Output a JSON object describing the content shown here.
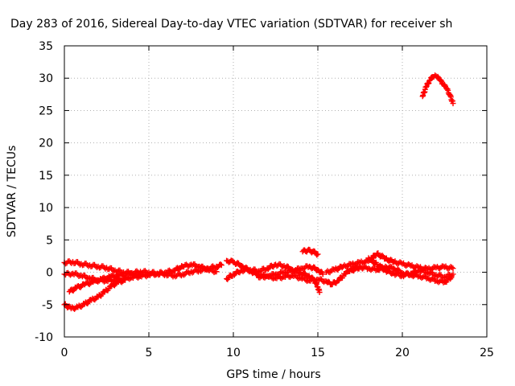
{
  "chart_data": {
    "type": "scatter",
    "title": "Day 283 of 2016, Sidereal Day-to-day VTEC variation (SDTVAR) for receiver sh",
    "xlabel": "GPS time / hours",
    "ylabel": "SDTVAR / TECUs",
    "xlim": [
      0,
      25
    ],
    "ylim": [
      -10,
      35
    ],
    "xticks": [
      "0",
      "5",
      "10",
      "15",
      "20",
      "25"
    ],
    "yticks": [
      "-10",
      "-5",
      "0",
      "5",
      "10",
      "15",
      "20",
      "25",
      "30",
      "35"
    ],
    "grid": true,
    "marker": "plus",
    "color": "#ff0000",
    "series": [
      {
        "values": [
          [
            0.0,
            1.5
          ],
          [
            0.5,
            1.6
          ],
          [
            1.0,
            1.3
          ],
          [
            1.5,
            1.1
          ],
          [
            2.0,
            0.9
          ],
          [
            2.5,
            0.7
          ],
          [
            3.0,
            0.3
          ],
          [
            3.5,
            0.0
          ],
          [
            4.0,
            -0.1
          ],
          [
            4.5,
            0.1
          ],
          [
            5.0,
            0.0
          ],
          [
            5.5,
            -0.2
          ],
          [
            6.0,
            -0.3
          ],
          [
            6.5,
            -0.5
          ],
          [
            7.0,
            -0.3
          ],
          [
            7.5,
            0.1
          ],
          [
            8.0,
            0.3
          ],
          [
            8.5,
            0.6
          ],
          [
            9.0,
            0.9
          ],
          [
            9.3,
            1.1
          ]
        ]
      },
      {
        "values": [
          [
            0.0,
            -0.3
          ],
          [
            0.5,
            -0.2
          ],
          [
            1.0,
            -0.5
          ],
          [
            1.5,
            -0.9
          ],
          [
            2.0,
            -1.2
          ],
          [
            2.5,
            -1.3
          ],
          [
            3.0,
            -1.2
          ],
          [
            3.5,
            -1.0
          ],
          [
            4.0,
            -0.8
          ],
          [
            4.5,
            -0.6
          ],
          [
            5.0,
            -0.4
          ],
          [
            5.5,
            -0.2
          ],
          [
            6.0,
            0.0
          ],
          [
            6.5,
            0.3
          ],
          [
            7.0,
            0.9
          ],
          [
            7.5,
            1.2
          ],
          [
            8.0,
            0.9
          ],
          [
            8.5,
            0.4
          ],
          [
            9.0,
            0.1
          ]
        ]
      },
      {
        "values": [
          [
            0.3,
            -3.0
          ],
          [
            0.7,
            -2.4
          ],
          [
            1.2,
            -1.9
          ],
          [
            1.7,
            -1.5
          ],
          [
            2.2,
            -1.1
          ],
          [
            2.7,
            -0.7
          ],
          [
            3.2,
            -0.5
          ],
          [
            3.8,
            -0.3
          ],
          [
            4.5,
            -0.3
          ]
        ]
      },
      {
        "values": [
          [
            0.0,
            -5.0
          ],
          [
            0.4,
            -5.6
          ],
          [
            0.8,
            -5.4
          ],
          [
            1.2,
            -4.9
          ],
          [
            1.6,
            -4.3
          ],
          [
            2.0,
            -3.8
          ],
          [
            2.4,
            -3.0
          ],
          [
            2.8,
            -2.1
          ],
          [
            3.2,
            -1.5
          ],
          [
            3.6,
            -1.2
          ]
        ]
      },
      {
        "values": [
          [
            9.6,
            1.8
          ],
          [
            10.0,
            1.6
          ],
          [
            10.5,
            1.0
          ],
          [
            11.0,
            0.2
          ],
          [
            11.5,
            -0.4
          ],
          [
            12.0,
            -0.6
          ],
          [
            12.5,
            -0.3
          ],
          [
            13.0,
            0.0
          ],
          [
            13.5,
            0.2
          ],
          [
            14.0,
            0.6
          ],
          [
            14.5,
            0.9
          ],
          [
            15.0,
            0.4
          ],
          [
            15.3,
            -0.3
          ]
        ]
      },
      {
        "values": [
          [
            9.6,
            -1.0
          ],
          [
            10.0,
            -0.3
          ],
          [
            10.5,
            0.3
          ],
          [
            11.0,
            0.4
          ],
          [
            11.5,
            0.2
          ],
          [
            12.0,
            0.6
          ],
          [
            12.5,
            1.2
          ],
          [
            13.0,
            1.0
          ],
          [
            13.5,
            0.4
          ],
          [
            14.0,
            -0.1
          ],
          [
            14.5,
            -0.6
          ],
          [
            14.8,
            -1.3
          ],
          [
            15.0,
            -2.3
          ],
          [
            15.1,
            -3.1
          ]
        ]
      },
      {
        "values": [
          [
            11.5,
            -0.8
          ],
          [
            12.0,
            -0.6
          ],
          [
            12.5,
            -0.9
          ],
          [
            13.0,
            -0.7
          ],
          [
            13.5,
            -0.5
          ],
          [
            14.0,
            -0.9
          ],
          [
            14.5,
            -1.3
          ],
          [
            15.0,
            -1.1
          ],
          [
            15.5,
            -1.4
          ],
          [
            15.8,
            -1.9
          ],
          [
            16.2,
            -1.3
          ],
          [
            16.6,
            -0.3
          ],
          [
            17.0,
            0.6
          ],
          [
            17.5,
            0.9
          ]
        ]
      },
      {
        "values": [
          [
            14.1,
            3.2
          ],
          [
            14.4,
            3.4
          ],
          [
            14.7,
            3.2
          ],
          [
            15.0,
            2.8
          ]
        ]
      },
      {
        "values": [
          [
            15.5,
            0.0
          ],
          [
            16.0,
            0.4
          ],
          [
            16.5,
            0.9
          ],
          [
            17.0,
            1.2
          ],
          [
            17.5,
            1.5
          ],
          [
            18.0,
            1.7
          ],
          [
            18.5,
            2.9
          ],
          [
            19.0,
            2.1
          ],
          [
            19.5,
            1.6
          ],
          [
            20.0,
            1.3
          ],
          [
            20.5,
            1.0
          ],
          [
            21.0,
            0.7
          ],
          [
            21.5,
            0.5
          ],
          [
            22.0,
            0.7
          ],
          [
            22.5,
            0.8
          ],
          [
            23.0,
            0.6
          ]
        ]
      },
      {
        "values": [
          [
            17.0,
            0.3
          ],
          [
            17.5,
            0.8
          ],
          [
            18.0,
            0.6
          ],
          [
            18.5,
            0.4
          ],
          [
            19.0,
            0.9
          ],
          [
            19.5,
            0.6
          ],
          [
            20.0,
            -0.1
          ],
          [
            20.5,
            -0.4
          ],
          [
            21.0,
            -0.6
          ],
          [
            21.5,
            -0.9
          ],
          [
            22.0,
            -1.3
          ],
          [
            22.5,
            -1.5
          ],
          [
            22.9,
            -0.8
          ]
        ]
      },
      {
        "values": [
          [
            18.0,
            2.2
          ],
          [
            18.5,
            1.2
          ],
          [
            19.0,
            0.3
          ],
          [
            19.5,
            -0.2
          ],
          [
            20.0,
            -0.5
          ],
          [
            20.5,
            -0.2
          ],
          [
            21.0,
            0.3
          ],
          [
            21.5,
            0.0
          ],
          [
            22.0,
            -0.4
          ],
          [
            22.5,
            -0.7
          ],
          [
            23.0,
            -0.3
          ]
        ]
      },
      {
        "values": [
          [
            21.2,
            27.2
          ],
          [
            21.4,
            28.6
          ],
          [
            21.6,
            29.6
          ],
          [
            21.8,
            30.2
          ],
          [
            22.0,
            30.3
          ],
          [
            22.2,
            29.8
          ],
          [
            22.4,
            29.1
          ],
          [
            22.6,
            28.5
          ],
          [
            22.8,
            27.5
          ],
          [
            23.0,
            26.1
          ]
        ]
      }
    ]
  }
}
